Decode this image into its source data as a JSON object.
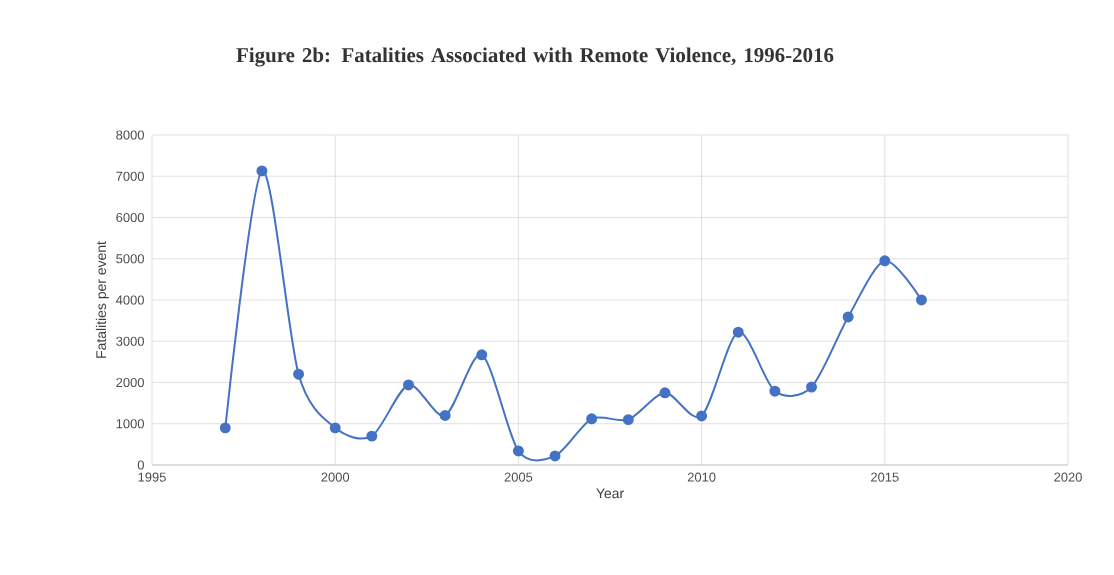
{
  "chart_data": {
    "type": "line",
    "title": "Figure 2b: Fatalities Associated with Remote Violence, 1996-2016",
    "xlabel": "Year",
    "ylabel": "Fatalities per event",
    "x": [
      1997,
      1998,
      1999,
      2000,
      2001,
      2002,
      2003,
      2004,
      2005,
      2006,
      2007,
      2008,
      2009,
      2010,
      2011,
      2012,
      2013,
      2014,
      2015,
      2016
    ],
    "series": [
      {
        "color": "#4472c4",
        "values": [
          900,
          7130,
          2200,
          900,
          700,
          1940,
          1200,
          2670,
          340,
          220,
          1120,
          1100,
          1750,
          1190,
          3220,
          1790,
          1890,
          3590,
          4950,
          4000
        ]
      }
    ],
    "xlim": [
      1995,
      2020
    ],
    "xticks": [
      1995,
      2000,
      2005,
      2010,
      2015,
      2020
    ],
    "ylim": [
      0,
      8000
    ],
    "yticks": [
      0,
      1000,
      2000,
      3000,
      4000,
      5000,
      6000,
      7000,
      8000
    ],
    "grid": true,
    "marker": "circle",
    "line_style": "solid"
  }
}
